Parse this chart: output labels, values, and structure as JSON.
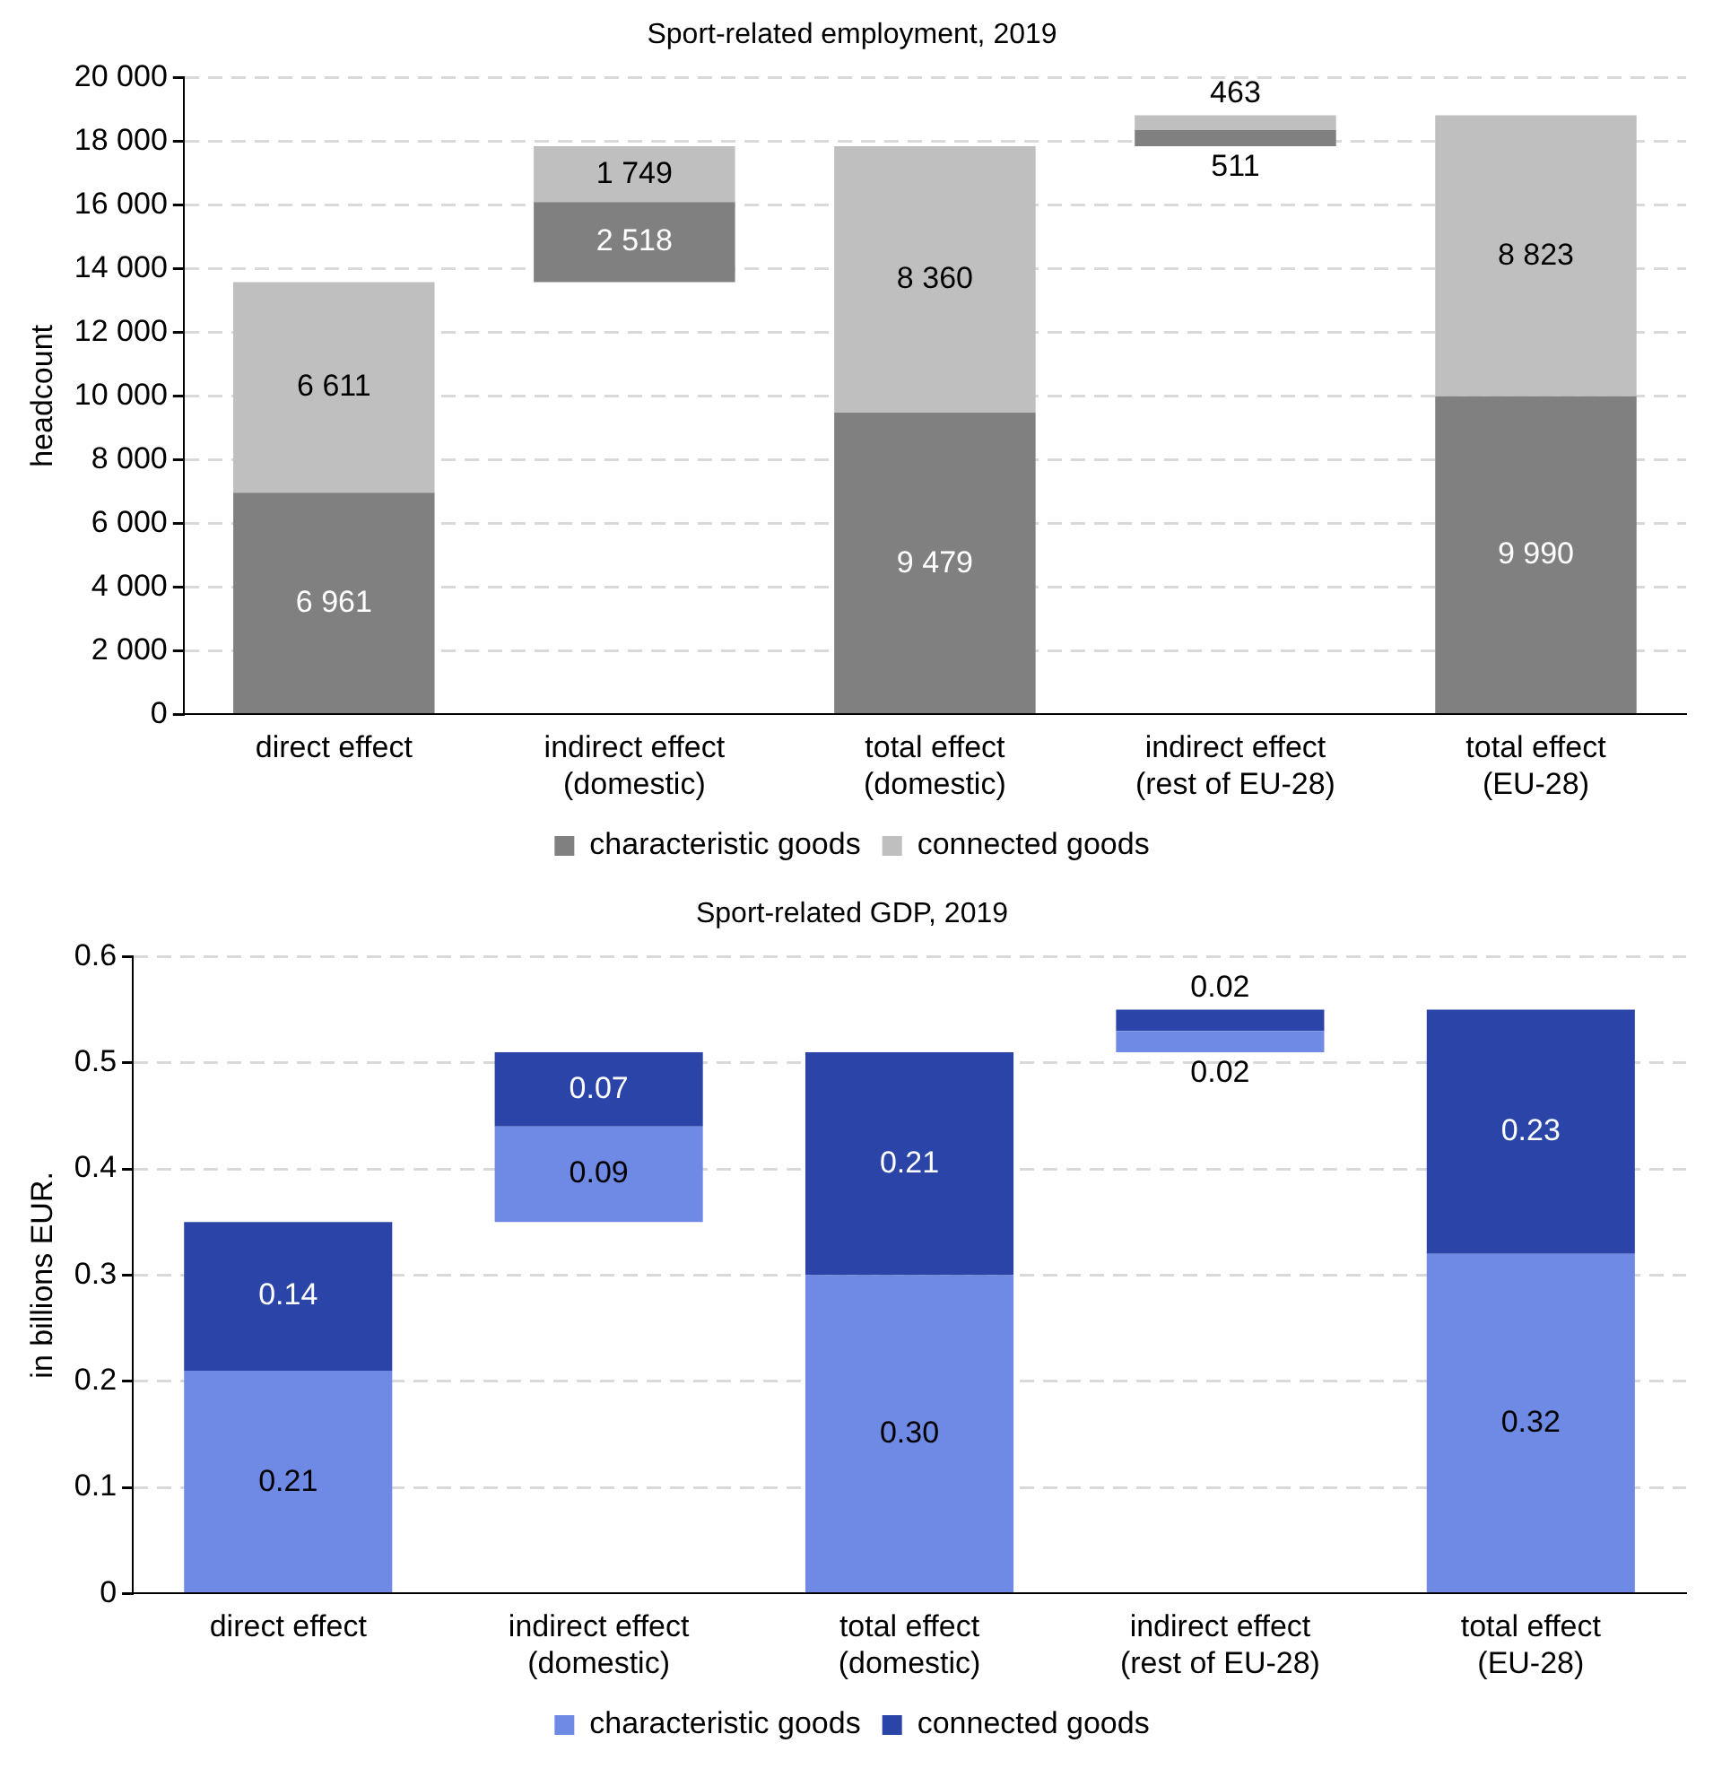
{
  "chart_data": [
    {
      "type": "bar",
      "title": "Sport-related employment, 2019",
      "ylabel": "headcount",
      "categories": [
        "direct effect",
        "indirect effect (domestic)",
        "total effect (domestic)",
        "indirect effect (rest of EU-28)",
        "total effect (EU-28)"
      ],
      "series": [
        {
          "name": "characteristic goods",
          "color": "#808080",
          "base": [
            0,
            13572,
            0,
            17839,
            0
          ],
          "values": [
            6961,
            2518,
            9479,
            511,
            9990
          ],
          "value_labels": [
            "6 961",
            "2 518",
            "9 479",
            "511",
            "9 990"
          ]
        },
        {
          "name": "connected goods",
          "color": "#bfbfbf",
          "base": [
            6961,
            16090,
            9479,
            18350,
            9990
          ],
          "values": [
            6611,
            1749,
            8360,
            463,
            8823
          ],
          "value_labels": [
            "6 611",
            "1 749",
            "8 360",
            "463",
            "8 823"
          ]
        }
      ],
      "ylim": [
        0,
        20000
      ],
      "yticks": [
        0,
        {
          "value": 2000,
          "label": "2 000"
        },
        {
          "value": 4000,
          "label": "4 000"
        },
        {
          "value": 6000,
          "label": "6 000"
        },
        {
          "value": 8000,
          "label": "8 000"
        },
        {
          "value": 10000,
          "label": "10 000"
        },
        {
          "value": 12000,
          "label": "12 000"
        },
        {
          "value": 14000,
          "label": "14 000"
        },
        {
          "value": 16000,
          "label": "16 000"
        },
        {
          "value": 18000,
          "label": "18 000"
        },
        {
          "value": 20000,
          "label": "20 000"
        }
      ],
      "grid": "y",
      "line_style": "dashed",
      "legend": "bottom"
    },
    {
      "type": "bar",
      "title": "Sport-related GDP, 2019",
      "ylabel": "in billions EUR.",
      "categories": [
        "direct effect",
        "indirect effect (domestic)",
        "total effect (domestic)",
        "indirect effect (rest of EU-28)",
        "total effect (EU-28)"
      ],
      "series": [
        {
          "name": "characteristic goods",
          "color": "#6f8ae4",
          "base": [
            0,
            0.35,
            0,
            0.51,
            0
          ],
          "values": [
            0.21,
            0.09,
            0.3,
            0.02,
            0.32
          ],
          "value_labels": [
            "0.21",
            "0.09",
            "0.30",
            "0.02",
            "0.32"
          ]
        },
        {
          "name": "connected goods",
          "color": "#2a44a8",
          "base": [
            0.21,
            0.44,
            0.3,
            0.53,
            0.32
          ],
          "values": [
            0.14,
            0.07,
            0.21,
            0.02,
            0.23
          ],
          "value_labels": [
            "0.14",
            "0.07",
            "0.21",
            "0.02",
            "0.23"
          ]
        }
      ],
      "ylim": [
        0,
        0.6
      ],
      "yticks": [
        0,
        0.1,
        0.2,
        0.3,
        0.4,
        0.5,
        0.6
      ],
      "grid": "y",
      "line_style": "dashed",
      "legend": "bottom"
    }
  ]
}
